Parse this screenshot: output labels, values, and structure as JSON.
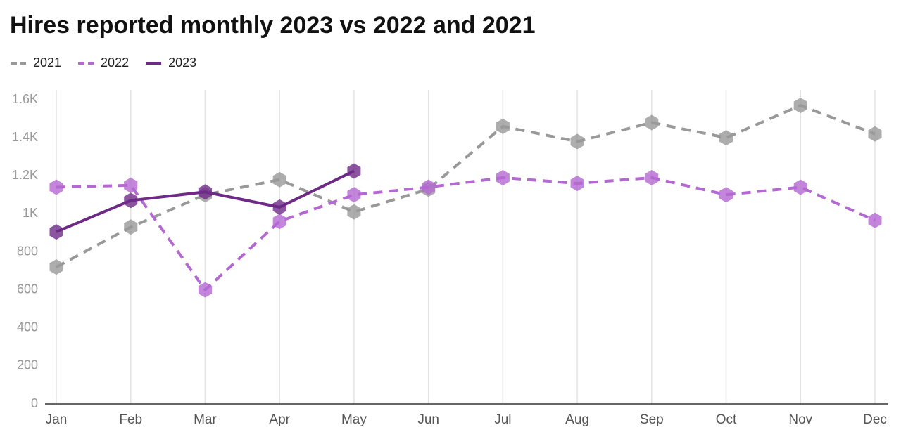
{
  "chart_data": {
    "type": "line",
    "title": "Hires reported monthly 2023 vs 2022 and 2021",
    "categories": [
      "Jan",
      "Feb",
      "Mar",
      "Apr",
      "May",
      "Jun",
      "Jul",
      "Aug",
      "Sep",
      "Oct",
      "Nov",
      "Dec"
    ],
    "series": [
      {
        "name": "2021",
        "color": "#999999",
        "line_style": "dashed",
        "values": [
          720,
          930,
          1100,
          1180,
          1010,
          1130,
          1460,
          1380,
          1480,
          1400,
          1570,
          1420
        ]
      },
      {
        "name": "2022",
        "color": "#b468d2",
        "line_style": "dashed",
        "values": [
          1140,
          1150,
          600,
          960,
          1100,
          1140,
          1190,
          1160,
          1190,
          1100,
          1140,
          965
        ]
      },
      {
        "name": "2023",
        "color": "#6e2a87",
        "line_style": "solid",
        "values": [
          905,
          1070,
          1115,
          1035,
          1225,
          null,
          null,
          null,
          null,
          null,
          null,
          null
        ]
      }
    ],
    "ylim": [
      0,
      1600
    ],
    "yticks": [
      0,
      200,
      400,
      600,
      800,
      {
        "value": 1000,
        "label": "1K"
      },
      {
        "value": 1200,
        "label": "1.2K"
      },
      {
        "value": 1400,
        "label": "1.4K"
      },
      {
        "value": 1600,
        "label": "1.6K"
      }
    ],
    "grid": "x",
    "legend": "top-left"
  }
}
